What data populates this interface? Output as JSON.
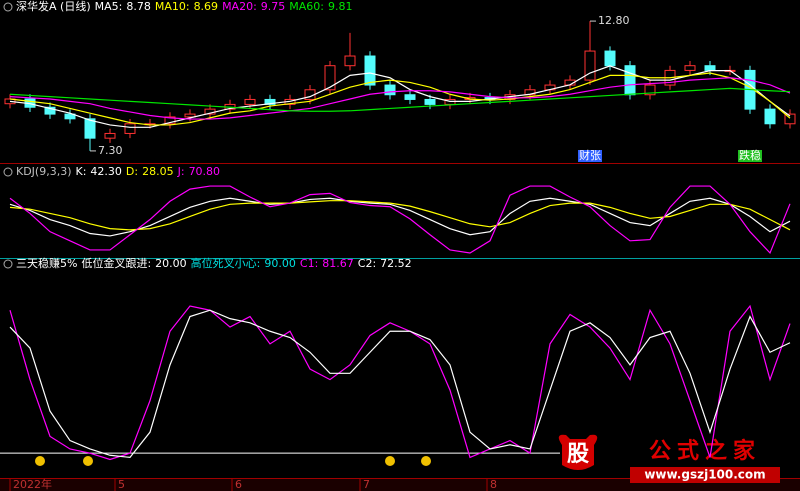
{
  "chart_data": [
    {
      "type": "candlestick",
      "title": "深华发A (日线)",
      "title_color": "#ffffff",
      "up_color": "#ff3232",
      "down_color": "#54fcfc",
      "ylim": [
        7.0,
        13.1
      ],
      "open": [
        9.3,
        9.5,
        9.15,
        8.86,
        8.66,
        7.84,
        8.04,
        8.45,
        8.45,
        8.74,
        8.86,
        9.07,
        9.27,
        9.48,
        9.27,
        9.48,
        9.89,
        10.91,
        11.32,
        10.09,
        9.68,
        9.48,
        9.27,
        9.48,
        9.56,
        9.48,
        9.68,
        9.89,
        10.09,
        10.3,
        11.53,
        10.91,
        9.68,
        10.09,
        10.71,
        10.91,
        10.71,
        10.71,
        9.07,
        8.45
      ],
      "high": [
        9.7,
        9.7,
        9.35,
        9.06,
        8.86,
        8.24,
        8.65,
        8.65,
        8.94,
        9.06,
        9.27,
        9.47,
        9.68,
        9.68,
        9.68,
        10.09,
        11.11,
        12.3,
        11.52,
        10.29,
        9.88,
        9.68,
        9.68,
        9.76,
        9.76,
        9.88,
        10.09,
        10.29,
        10.5,
        12.8,
        11.73,
        11.11,
        10.29,
        10.91,
        11.11,
        11.11,
        10.91,
        10.91,
        9.27,
        9.06
      ],
      "low": [
        9.1,
        8.95,
        8.66,
        8.46,
        7.3,
        7.64,
        7.84,
        8.25,
        8.25,
        8.54,
        8.66,
        8.87,
        9.07,
        9.07,
        9.07,
        9.28,
        9.69,
        10.71,
        9.89,
        9.48,
        9.28,
        9.07,
        9.07,
        9.28,
        9.28,
        9.28,
        9.48,
        9.69,
        9.89,
        10.1,
        10.71,
        9.48,
        9.48,
        9.89,
        10.51,
        10.51,
        10.51,
        8.87,
        8.25,
        8.25
      ],
      "close": [
        9.5,
        9.15,
        8.86,
        8.66,
        7.84,
        8.04,
        8.45,
        8.45,
        8.74,
        8.86,
        9.07,
        9.27,
        9.48,
        9.27,
        9.48,
        9.89,
        10.91,
        11.32,
        10.09,
        9.68,
        9.48,
        9.27,
        9.48,
        9.56,
        9.48,
        9.68,
        9.89,
        10.09,
        10.3,
        11.53,
        10.91,
        9.68,
        10.09,
        10.71,
        10.91,
        10.71,
        10.71,
        9.07,
        8.45,
        8.86
      ],
      "series": [
        {
          "name": "MA5:",
          "color": "#ffffff",
          "values": [
            9.4,
            9.3,
            9.1,
            8.9,
            8.6,
            8.4,
            8.3,
            8.3,
            8.5,
            8.7,
            8.9,
            9.1,
            9.2,
            9.3,
            9.4,
            9.6,
            10.0,
            10.5,
            10.6,
            10.4,
            9.9,
            9.6,
            9.4,
            9.4,
            9.5,
            9.6,
            9.7,
            9.9,
            10.1,
            10.6,
            10.9,
            10.6,
            10.3,
            10.3,
            10.5,
            10.7,
            10.7,
            10.1,
            9.4,
            8.78
          ]
        },
        {
          "name": "MA10:",
          "color": "#ffff00",
          "values": [
            9.5,
            9.4,
            9.3,
            9.1,
            8.9,
            8.7,
            8.5,
            8.4,
            8.4,
            8.5,
            8.7,
            8.9,
            9.0,
            9.2,
            9.3,
            9.4,
            9.7,
            10.0,
            10.2,
            10.3,
            10.2,
            10.0,
            9.7,
            9.5,
            9.45,
            9.5,
            9.6,
            9.7,
            9.9,
            10.2,
            10.5,
            10.5,
            10.4,
            10.4,
            10.5,
            10.6,
            10.4,
            10.0,
            9.4,
            8.69
          ]
        },
        {
          "name": "MA20:",
          "color": "#ff00ff",
          "values": [
            9.6,
            9.55,
            9.5,
            9.4,
            9.3,
            9.1,
            8.95,
            8.8,
            8.7,
            8.65,
            8.65,
            8.7,
            8.8,
            8.9,
            9.0,
            9.1,
            9.3,
            9.5,
            9.7,
            9.8,
            9.85,
            9.85,
            9.8,
            9.7,
            9.6,
            9.55,
            9.55,
            9.6,
            9.7,
            9.85,
            10.0,
            10.1,
            10.15,
            10.2,
            10.3,
            10.35,
            10.4,
            10.3,
            10.1,
            9.75
          ]
        },
        {
          "name": "MA60:",
          "color": "#00e600",
          "values": [
            9.7,
            9.65,
            9.6,
            9.55,
            9.5,
            9.45,
            9.4,
            9.35,
            9.3,
            9.25,
            9.2,
            9.15,
            9.1,
            9.05,
            9.0,
            8.98,
            8.98,
            9.0,
            9.05,
            9.1,
            9.15,
            9.2,
            9.25,
            9.3,
            9.35,
            9.4,
            9.45,
            9.5,
            9.55,
            9.6,
            9.65,
            9.7,
            9.75,
            9.8,
            9.85,
            9.9,
            9.95,
            9.9,
            9.85,
            9.81
          ]
        }
      ],
      "annotations": [
        {
          "value": 12.8,
          "label": "12.80"
        },
        {
          "value": 7.3,
          "label": "7.30"
        }
      ],
      "markers": [
        {
          "x": 29,
          "label": "财张",
          "color": "#3060ff"
        },
        {
          "x": 37,
          "label": "跌稳",
          "color": "#20c020"
        }
      ]
    },
    {
      "type": "line",
      "title": "KDJ(9,3,3)",
      "title_color": "#c0c0c0",
      "ylim": [
        -15,
        110
      ],
      "series": [
        {
          "name": "K:",
          "color": "#ffffff",
          "value_label": "42.30",
          "values": [
            70,
            60,
            45,
            35,
            22,
            18,
            25,
            35,
            50,
            65,
            75,
            80,
            75,
            70,
            72,
            78,
            80,
            75,
            72,
            70,
            60,
            45,
            30,
            20,
            25,
            55,
            75,
            80,
            75,
            70,
            55,
            40,
            35,
            55,
            75,
            80,
            70,
            50,
            25,
            42.3
          ]
        },
        {
          "name": "D:",
          "color": "#ffff00",
          "value_label": "28.05",
          "values": [
            65,
            62,
            55,
            48,
            38,
            30,
            28,
            30,
            38,
            50,
            62,
            70,
            72,
            72,
            72,
            74,
            76,
            76,
            74,
            72,
            67,
            58,
            48,
            38,
            33,
            40,
            55,
            68,
            72,
            72,
            65,
            55,
            47,
            50,
            60,
            70,
            70,
            62,
            45,
            28.05
          ]
        },
        {
          "name": "J:",
          "color": "#ff00ff",
          "value_label": "70.80",
          "values": [
            80,
            55,
            25,
            10,
            -5,
            -5,
            20,
            45,
            75,
            95,
            100,
            100,
            82,
            66,
            72,
            86,
            88,
            73,
            68,
            66,
            46,
            20,
            -5,
            -10,
            10,
            85,
            100,
            100,
            82,
            66,
            35,
            10,
            12,
            65,
            100,
            100,
            70,
            25,
            -10,
            70.8
          ]
        }
      ]
    },
    {
      "type": "line",
      "title": "三天稳赚5%",
      "title_color": "#ffffff",
      "ylim": [
        12,
        100
      ],
      "thresholds": [
        {
          "name": "低位金叉跟进:",
          "value": 20,
          "label": "20.00",
          "color": "#ffffff",
          "line": true
        },
        {
          "name": "高位死叉小心:",
          "value": 90,
          "label": "90.00",
          "color": "#00e0e0",
          "line": false
        }
      ],
      "series": [
        {
          "name": "C1:",
          "color": "#ff00ff",
          "value_label": "81.67",
          "values": [
            88,
            55,
            28,
            22,
            20,
            17,
            20,
            45,
            78,
            90,
            88,
            80,
            85,
            72,
            78,
            60,
            55,
            62,
            76,
            82,
            78,
            72,
            50,
            18,
            22,
            26,
            20,
            72,
            86,
            80,
            70,
            55,
            88,
            72,
            45,
            18,
            78,
            90,
            55,
            81.67
          ]
        },
        {
          "name": "C2:",
          "color": "#ffffff",
          "value_label": "72.52",
          "values": [
            80,
            70,
            40,
            26,
            22,
            19,
            18,
            30,
            62,
            85,
            88,
            84,
            82,
            78,
            75,
            68,
            58,
            58,
            68,
            78,
            78,
            74,
            62,
            30,
            22,
            24,
            22,
            50,
            78,
            82,
            75,
            62,
            75,
            78,
            58,
            30,
            60,
            85,
            68,
            72.52
          ]
        }
      ],
      "xticks": [
        {
          "value": 0,
          "label": "2022年"
        },
        {
          "value": 5.25,
          "label": "5"
        },
        {
          "value": 11.1,
          "label": "6"
        },
        {
          "value": 17.5,
          "label": "7"
        },
        {
          "value": 23.85,
          "label": "8"
        }
      ]
    }
  ],
  "watermark": {
    "logo": "股",
    "name": "公式之家",
    "url": "www.gszj100.com"
  }
}
